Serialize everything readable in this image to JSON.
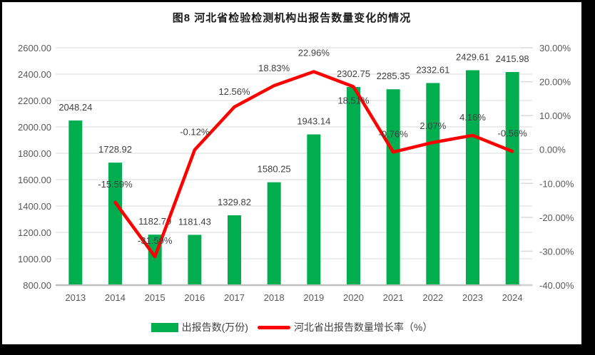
{
  "frame": {
    "border_color": "#000000",
    "canvas_color": "#FFFFFF"
  },
  "chart_data": {
    "type": "bar+line",
    "title": "图8 河北省检验检测机构出报告数量变化的情况",
    "categories": [
      "2013",
      "2014",
      "2015",
      "2016",
      "2017",
      "2018",
      "2019",
      "2020",
      "2021",
      "2022",
      "2023",
      "2024"
    ],
    "series": [
      {
        "name": "出报告数(万份)",
        "type": "bar",
        "axis": "left",
        "color": "#00AE50",
        "values": [
          2048.24,
          1728.92,
          1182.79,
          1181.43,
          1329.82,
          1580.25,
          1943.14,
          2302.75,
          2285.35,
          2332.61,
          2429.61,
          2415.98
        ],
        "labels": [
          "2048.24",
          "1728.92",
          "1182.79",
          "1181.43",
          "1329.82",
          "1580.25",
          "1943.14",
          "2302.75",
          "2285.35",
          "2332.61",
          "2429.61",
          "2415.98"
        ]
      },
      {
        "name": "河北省出报告数量增长率（%）",
        "type": "line",
        "axis": "right",
        "color": "#FF0000",
        "values": [
          null,
          -15.59,
          -31.59,
          -0.12,
          12.56,
          18.83,
          22.96,
          18.51,
          -0.76,
          2.07,
          4.16,
          -0.56
        ],
        "labels": [
          null,
          "-15.59%",
          "-31.59%",
          "-0.12%",
          "12.56%",
          "18.83%",
          "22.96%",
          "18.51%",
          "-0.76%",
          "2.07%",
          "4.16%",
          "-0.56%"
        ],
        "label_dy": [
          null,
          -25,
          -22,
          -25,
          -21,
          -24,
          -26,
          20,
          -25,
          -23,
          -25,
          -25
        ]
      }
    ],
    "left_axis": {
      "min": 800,
      "max": 2600,
      "step": 200,
      "tick_labels": [
        "2600.00",
        "2400.00",
        "2200.00",
        "2000.00",
        "1800.00",
        "1600.00",
        "1400.00",
        "1200.00",
        "1000.00",
        "800.00"
      ]
    },
    "right_axis": {
      "min": -40,
      "max": 30,
      "step": 10,
      "tick_labels": [
        "30.00%",
        "20.00%",
        "10.00%",
        "0.00%",
        "-10.00%",
        "-20.00%",
        "-30.00%",
        "-40.00%"
      ]
    },
    "grid": true,
    "legend_position": "bottom",
    "colors": {
      "gridline": "#DADADA",
      "axis_line": "#BFBFBF",
      "tick_text": "#595959",
      "data_label": "#404040"
    }
  }
}
